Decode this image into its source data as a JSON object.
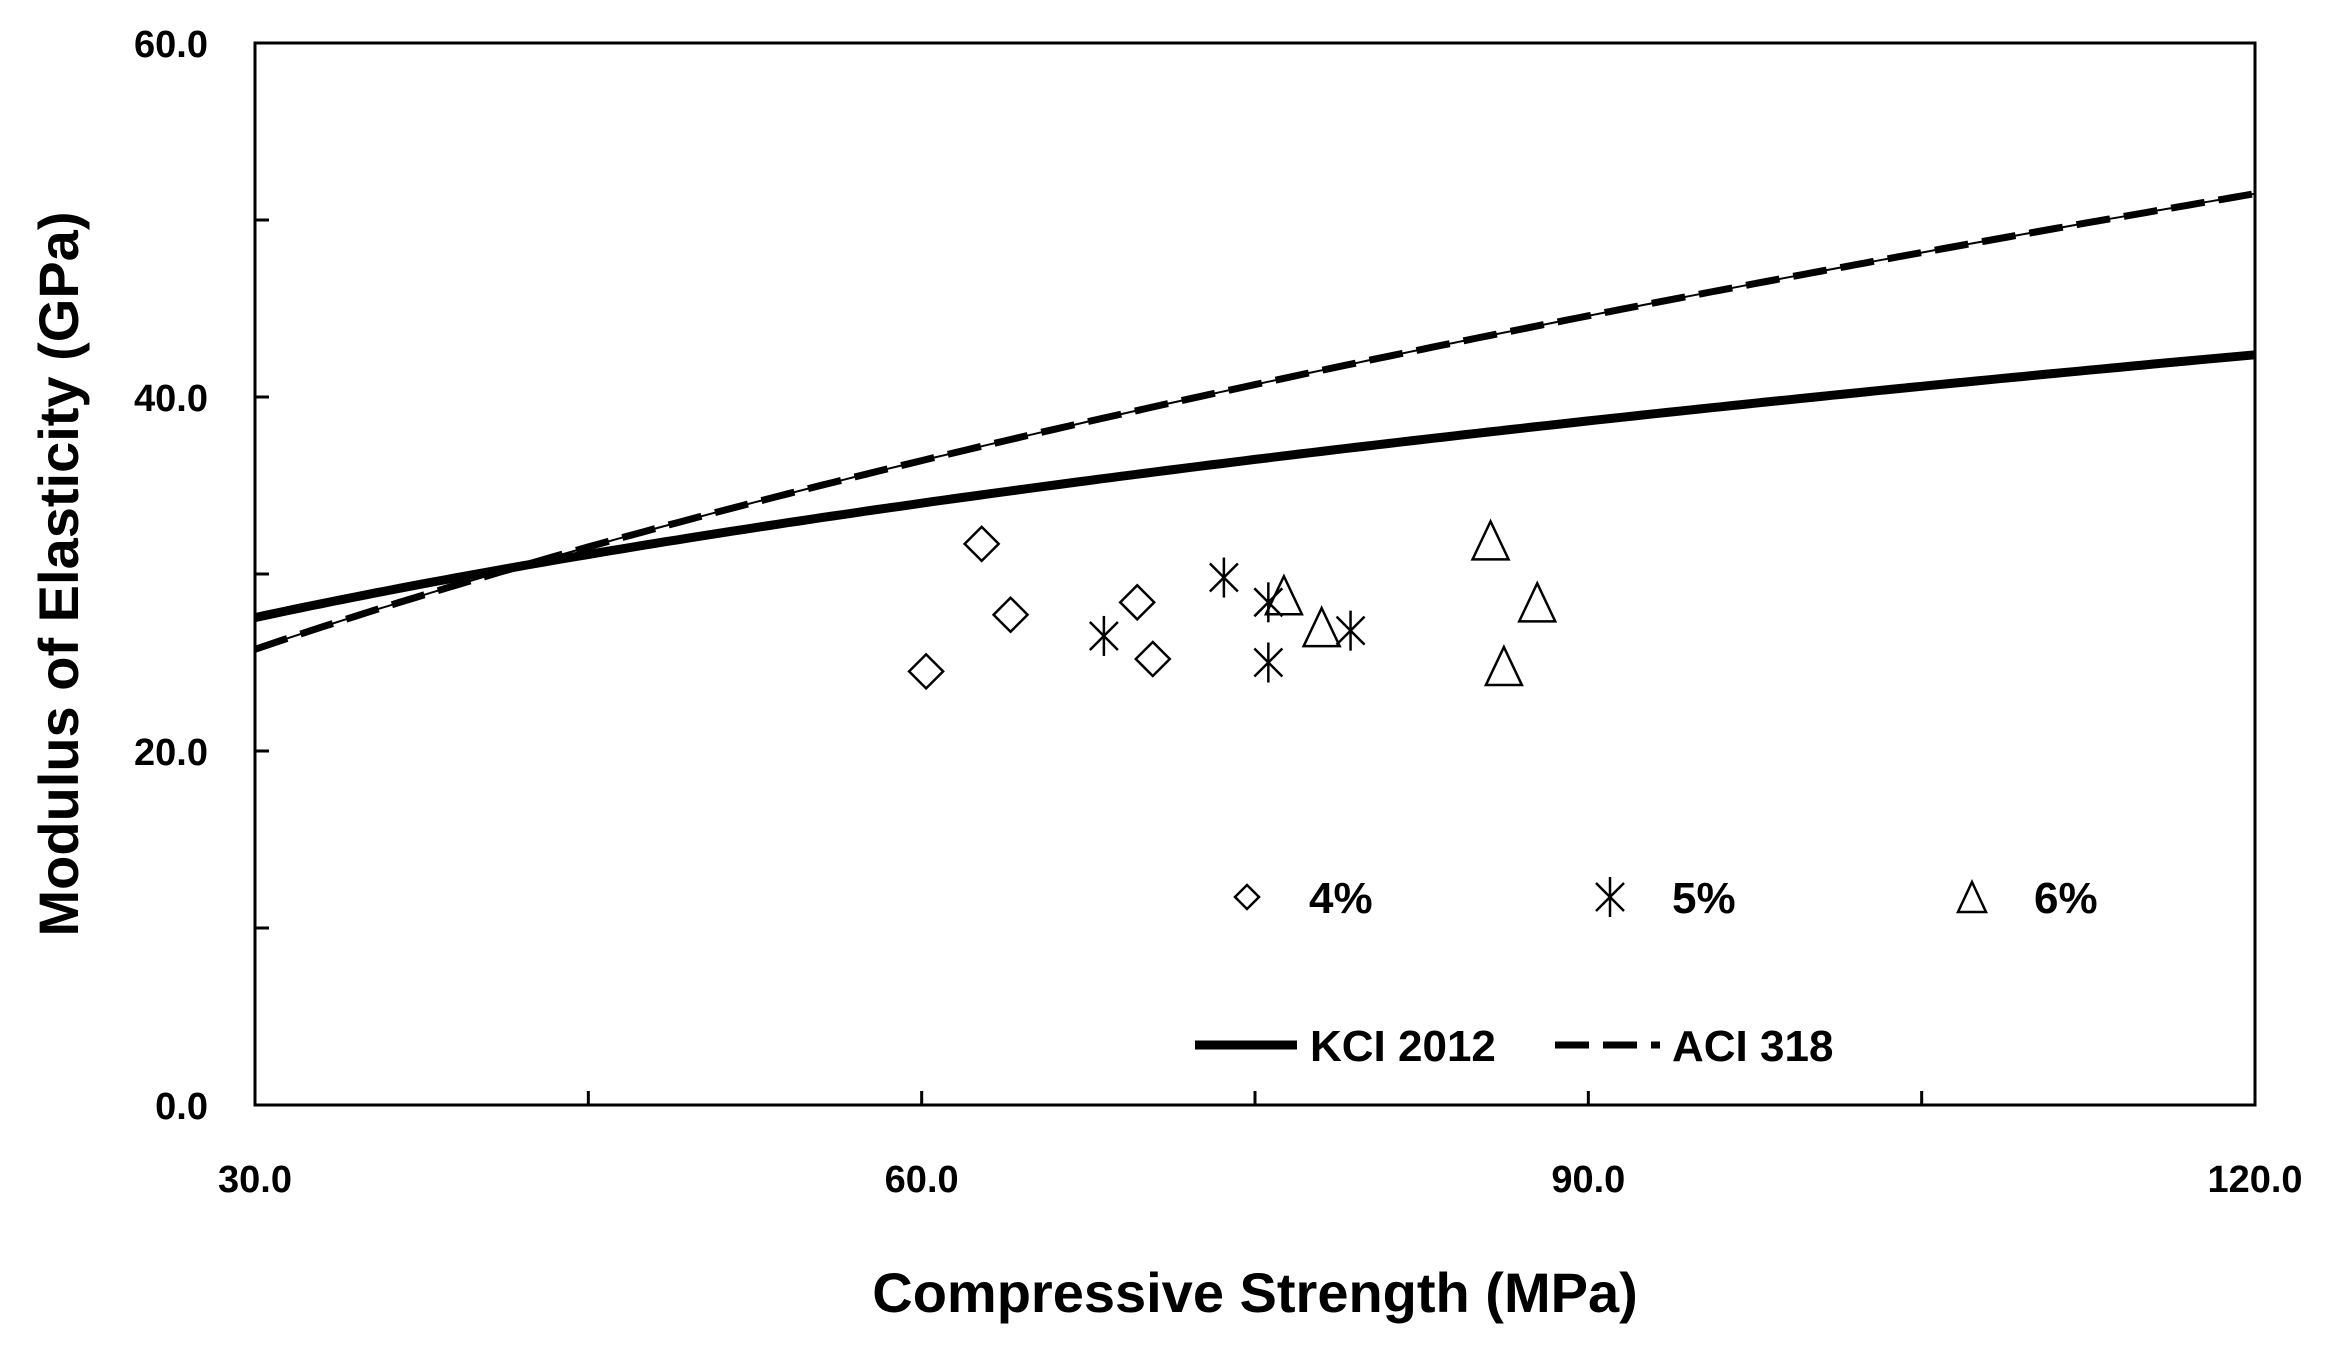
{
  "chart_data": {
    "type": "scatter",
    "title": "",
    "xlabel": "Compressive Strength (MPa)",
    "ylabel": "Modulus of Elasticity (GPa)",
    "xlim": [
      30,
      120
    ],
    "ylim": [
      0,
      60
    ],
    "x_ticks": [
      30,
      45,
      60,
      75,
      90,
      105,
      120
    ],
    "x_tick_labels": [
      "30.0",
      "",
      "60.0",
      "",
      "90.0",
      "",
      "120.0"
    ],
    "y_ticks": [
      0,
      10,
      20,
      30,
      40,
      50,
      60
    ],
    "y_tick_labels": [
      "0.0",
      "",
      "20.0",
      "",
      "40.0",
      "",
      "60.0"
    ],
    "grid": false,
    "series": [
      {
        "name": "4%",
        "marker": "diamond",
        "x": [
          60.2,
          62.7,
          64.0,
          69.7,
          70.4
        ],
        "y": [
          24.5,
          31.7,
          27.7,
          28.4,
          25.2
        ]
      },
      {
        "name": "5%",
        "marker": "asterisk",
        "x": [
          68.2,
          73.6,
          75.6,
          75.6,
          79.3
        ],
        "y": [
          26.5,
          29.8,
          28.4,
          25.0,
          26.8
        ]
      },
      {
        "name": "6%",
        "marker": "triangle",
        "x": [
          76.3,
          78.0,
          85.6,
          86.2,
          87.7
        ],
        "y": [
          28.8,
          27.0,
          31.9,
          24.8,
          28.4
        ]
      }
    ],
    "lines": [
      {
        "name": "KCI 2012",
        "style": "solid",
        "formula": "8500*cbrt(fc+4)/1000"
      },
      {
        "name": "ACI 318",
        "style": "dashed",
        "formula": "4.7*sqrt(fc)"
      }
    ],
    "legend_rows": [
      [
        "4%",
        "5%",
        "6%"
      ],
      [
        "KCI 2012",
        "ACI 318"
      ]
    ],
    "legend_position": "bottom-center inside"
  }
}
